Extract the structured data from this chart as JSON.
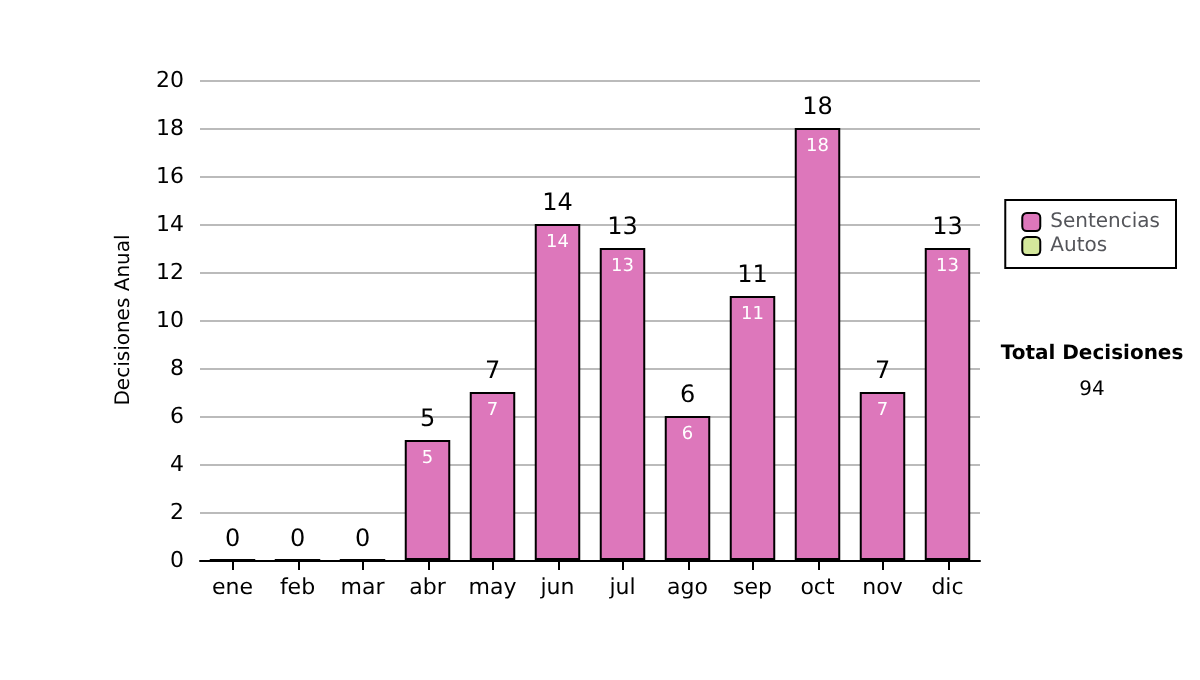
{
  "chart_data": {
    "type": "bar",
    "ylabel": "Decisiones Anual",
    "categories": [
      "ene",
      "feb",
      "mar",
      "abr",
      "may",
      "jun",
      "jul",
      "ago",
      "sep",
      "oct",
      "nov",
      "dic"
    ],
    "series": [
      {
        "name": "Sentencias",
        "color": "#dd77bb",
        "values": [
          0,
          0,
          0,
          5,
          7,
          14,
          13,
          6,
          11,
          18,
          7,
          13
        ],
        "value_labels": [
          null,
          null,
          null,
          "5",
          "7",
          "14",
          "13",
          "6",
          "11",
          "18",
          "7",
          "13"
        ]
      },
      {
        "name": "Autos",
        "color": "#d4e89c",
        "values": [
          0,
          0,
          0,
          0,
          0,
          0,
          0,
          0,
          0,
          0,
          0,
          0
        ]
      }
    ],
    "stacked": true,
    "totals": [
      "0",
      "0",
      "0",
      "5",
      "7",
      "14",
      "13",
      "6",
      "11",
      "18",
      "7",
      "13"
    ],
    "ylim": [
      0,
      20
    ],
    "yticks": [
      0,
      2,
      4,
      6,
      8,
      10,
      12,
      14,
      16,
      18,
      20
    ],
    "grid": "y",
    "legend": "right",
    "annotations": [
      "Total Decisiones",
      "94"
    ]
  }
}
